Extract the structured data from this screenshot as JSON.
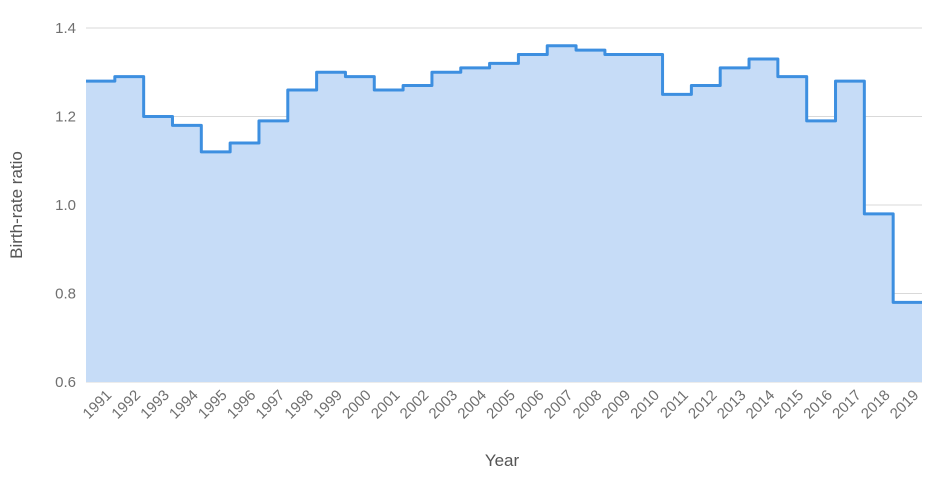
{
  "chart_data": {
    "type": "area",
    "step": true,
    "xlabel": "Year",
    "ylabel": "Birth-rate ratio",
    "ylim": [
      0.6,
      1.4
    ],
    "yticks": [
      "0.6",
      "0.8",
      "1.0",
      "1.2",
      "1.4"
    ],
    "grid": true,
    "colors": {
      "line": "#3d8fe0",
      "fill": "#c6dcf7",
      "grid": "#d9d9d9"
    },
    "categories": [
      "1991",
      "1992",
      "1993",
      "1994",
      "1995",
      "1996",
      "1997",
      "1998",
      "1999",
      "2000",
      "2001",
      "2002",
      "2003",
      "2004",
      "2005",
      "2006",
      "2007",
      "2008",
      "2009",
      "2010",
      "2011",
      "2012",
      "2013",
      "2014",
      "2015",
      "2016",
      "2017",
      "2018",
      "2019"
    ],
    "values": [
      1.28,
      1.29,
      1.2,
      1.18,
      1.12,
      1.14,
      1.19,
      1.26,
      1.3,
      1.29,
      1.26,
      1.27,
      1.3,
      1.31,
      1.32,
      1.34,
      1.36,
      1.35,
      1.34,
      1.34,
      1.25,
      1.27,
      1.31,
      1.33,
      1.29,
      1.19,
      1.28,
      0.98,
      0.78
    ]
  }
}
